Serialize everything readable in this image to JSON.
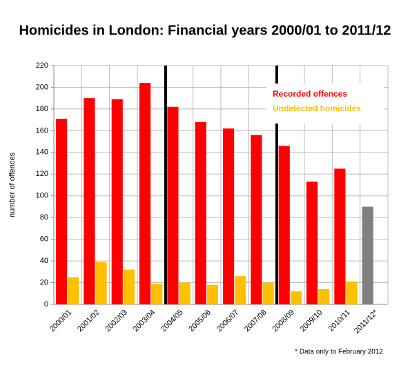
{
  "chart_data": {
    "type": "bar",
    "title": "Homicides in London: Financial years 2000/01 to 2011/12",
    "y_label": "number of offences",
    "footnote": "* Data only to February 2012",
    "categories": [
      "2000/01",
      "2001/02",
      "2002/03",
      "2003/04",
      "2004/05",
      "2005/06",
      "2006/07",
      "2007/08",
      "2008/09",
      "2009/10",
      "2010/11",
      "2011/12*"
    ],
    "series": [
      {
        "name": "Recorded offences",
        "color": "#ff0000",
        "colors": [
          "#ff0000",
          "#ff0000",
          "#ff0000",
          "#ff0000",
          "#ff0000",
          "#ff0000",
          "#ff0000",
          "#ff0000",
          "#ff0000",
          "#ff0000",
          "#ff0000",
          "#808080"
        ],
        "values": [
          171,
          190,
          189,
          204,
          182,
          168,
          162,
          156,
          146,
          113,
          125,
          90
        ]
      },
      {
        "name": "Undetected homicides",
        "color": "#ffc000",
        "values": [
          25,
          39,
          32,
          19,
          20,
          18,
          26,
          20,
          12,
          14,
          21,
          null
        ]
      }
    ],
    "ylim": [
      0,
      220
    ],
    "yticks": [
      0,
      20,
      40,
      60,
      80,
      100,
      120,
      140,
      160,
      180,
      200,
      220
    ],
    "grid": true
  }
}
